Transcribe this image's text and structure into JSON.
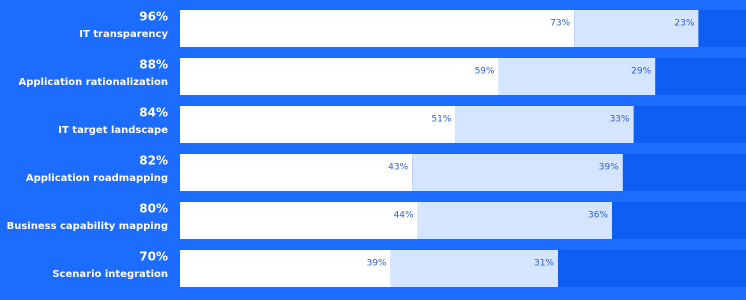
{
  "chart_data": {
    "type": "stacked-bar-horizontal",
    "categories": [
      "IT transparency",
      "Application rationalization",
      "IT target landscape",
      "Application roadmapping",
      "Business capability mapping",
      "Scenario integration"
    ],
    "total_labels": [
      "96%",
      "88%",
      "84%",
      "82%",
      "80%",
      "70%"
    ],
    "series": [
      {
        "color": "#ffffff",
        "values": [
          73,
          59,
          51,
          43,
          44,
          39
        ],
        "value_labels": [
          "73%",
          "59%",
          "51%",
          "43%",
          "44%",
          "39%"
        ]
      },
      {
        "color": "#d5e5ff",
        "values": [
          23,
          29,
          33,
          39,
          36,
          31
        ],
        "value_labels": [
          "23%",
          "29%",
          "33%",
          "39%",
          "36%",
          "31%"
        ]
      }
    ],
    "xlim": [
      0,
      100
    ]
  }
}
